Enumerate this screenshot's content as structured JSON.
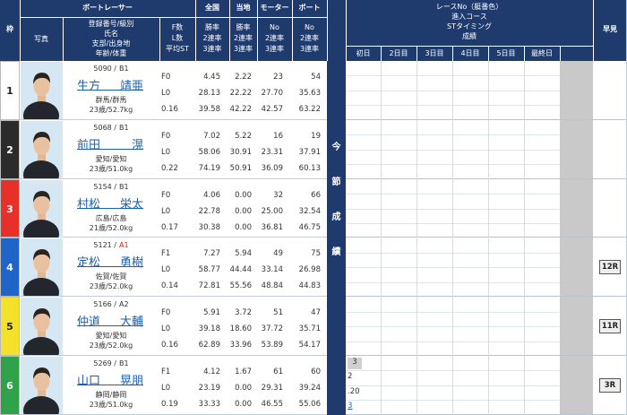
{
  "header": {
    "frame": "枠",
    "racer": "ボートレーサー",
    "national": "全国",
    "local": "当地",
    "motor": "モーター",
    "boat": "ボート",
    "photo": "写真",
    "info_lines": [
      "登録番号/級別",
      "氏名",
      "支部/出身地",
      "年齢/体重"
    ],
    "fl_lines": [
      "F数",
      "L数",
      "平均ST"
    ],
    "rate_lines": [
      "勝率",
      "2連率",
      "3連率"
    ],
    "equip_lines": [
      "No",
      "2連率",
      "3連率"
    ],
    "results_lines": [
      "レースNo（艇番色）",
      "進入コース",
      "STタイミング",
      "成績"
    ],
    "days": [
      "初日",
      "2日目",
      "3日目",
      "4日目",
      "5日目",
      "最終日"
    ],
    "quick": "早見",
    "series": [
      "今",
      "節",
      "成",
      "績"
    ]
  },
  "racers": [
    {
      "frame": "1",
      "frame_color": "#ffffff",
      "frame_text_color": "#222222",
      "reg": "5090 /",
      "class": "B1",
      "class_color": "#333333",
      "surname": "生方",
      "given": "靖亜",
      "branch": "群馬/群馬",
      "age_weight": "23歳/52.7kg",
      "fl": [
        "F0",
        "L0",
        "0.16"
      ],
      "national": [
        "4.45",
        "28.13",
        "39.58"
      ],
      "local": [
        "2.22",
        "22.22",
        "42.22"
      ],
      "motor": [
        "23",
        "27.70",
        "42.57"
      ],
      "boat": [
        "54",
        "35.63",
        "63.22"
      ]
    },
    {
      "frame": "2",
      "frame_color": "#2b2b2b",
      "frame_text_color": "#ffffff",
      "reg": "5068 /",
      "class": "B1",
      "class_color": "#333333",
      "surname": "前田",
      "given": "滉",
      "branch": "愛知/愛知",
      "age_weight": "23歳/51.0kg",
      "fl": [
        "F0",
        "L0",
        "0.22"
      ],
      "national": [
        "7.02",
        "58.06",
        "74.19"
      ],
      "local": [
        "5.22",
        "30.91",
        "50.91"
      ],
      "motor": [
        "16",
        "23.31",
        "36.09"
      ],
      "boat": [
        "19",
        "37.91",
        "60.13"
      ]
    },
    {
      "frame": "3",
      "frame_color": "#e8302a",
      "frame_text_color": "#ffffff",
      "reg": "5154 /",
      "class": "B1",
      "class_color": "#333333",
      "surname": "村松",
      "given": "栄太",
      "branch": "広島/広島",
      "age_weight": "21歳/52.0kg",
      "fl": [
        "F0",
        "L0",
        "0.17"
      ],
      "national": [
        "4.06",
        "22.78",
        "30.38"
      ],
      "local": [
        "0.00",
        "0.00",
        "0.00"
      ],
      "motor": [
        "32",
        "25.00",
        "36.81"
      ],
      "boat": [
        "66",
        "32.54",
        "46.75"
      ]
    },
    {
      "frame": "4",
      "frame_color": "#1f64c8",
      "frame_text_color": "#ffffff",
      "reg": "5121 /",
      "class": "A1",
      "class_color": "#e02020",
      "surname": "定松",
      "given": "勇樹",
      "branch": "佐賀/佐賀",
      "age_weight": "23歳/52.0kg",
      "fl": [
        "F1",
        "L0",
        "0.14"
      ],
      "national": [
        "7.27",
        "58.77",
        "72.81"
      ],
      "local": [
        "5.94",
        "44.44",
        "55.56"
      ],
      "motor": [
        "49",
        "33.14",
        "48.84"
      ],
      "boat": [
        "75",
        "26.98",
        "44.83"
      ],
      "quick": "12R"
    },
    {
      "frame": "5",
      "frame_color": "#f4e12c",
      "frame_text_color": "#222222",
      "reg": "5166 /",
      "class": "A2",
      "class_color": "#333333",
      "surname": "仲道",
      "given": "大輔",
      "branch": "愛知/愛知",
      "age_weight": "23歳/52.0kg",
      "fl": [
        "F0",
        "L0",
        "0.16"
      ],
      "national": [
        "5.91",
        "39.18",
        "62.89"
      ],
      "local": [
        "3.72",
        "18.60",
        "33.96"
      ],
      "motor": [
        "51",
        "37.72",
        "53.89"
      ],
      "boat": [
        "47",
        "35.71",
        "54.17"
      ],
      "quick": "11R"
    },
    {
      "frame": "6",
      "frame_color": "#2fa24a",
      "frame_text_color": "#ffffff",
      "reg": "5269 /",
      "class": "B1",
      "class_color": "#333333",
      "surname": "山口",
      "given": "晃朋",
      "branch": "静岡/静岡",
      "age_weight": "23歳/51.0kg",
      "fl": [
        "F1",
        "L0",
        "0.19"
      ],
      "national": [
        "4.12",
        "23.19",
        "33.33"
      ],
      "local": [
        "1.67",
        "0.00",
        "0.00"
      ],
      "motor": [
        "61",
        "29.31",
        "46.55"
      ],
      "boat": [
        "60",
        "39.24",
        "55.06"
      ],
      "results": [
        [
          "3",
          "2",
          ".20",
          "3"
        ]
      ],
      "quick": "3R"
    }
  ]
}
